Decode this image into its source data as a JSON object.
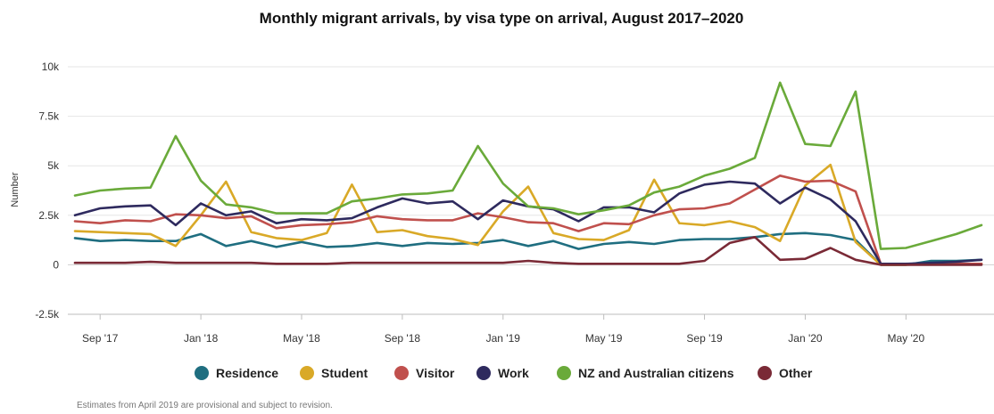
{
  "chart_data": {
    "type": "line",
    "title": "Monthly migrant arrivals, by visa type on arrival, August 2017–2020",
    "ylabel": "Number",
    "xlabel": "",
    "ylim": [
      -2500,
      10000
    ],
    "yticks": [
      -2500,
      0,
      2500,
      5000,
      7500,
      10000
    ],
    "ytick_labels": [
      "-2.5k",
      "0",
      "2.5k",
      "5k",
      "7.5k",
      "10k"
    ],
    "x": [
      "Aug 2017",
      "Sep 2017",
      "Oct 2017",
      "Nov 2017",
      "Dec 2017",
      "Jan 2018",
      "Feb 2018",
      "Mar 2018",
      "Apr 2018",
      "May 2018",
      "Jun 2018",
      "Jul 2018",
      "Aug 2018",
      "Sep 2018",
      "Oct 2018",
      "Nov 2018",
      "Dec 2018",
      "Jan 2019",
      "Feb 2019",
      "Mar 2019",
      "Apr 2019",
      "May 2019",
      "Jun 2019",
      "Jul 2019",
      "Aug 2019",
      "Sep 2019",
      "Oct 2019",
      "Nov 2019",
      "Dec 2019",
      "Jan 2020",
      "Feb 2020",
      "Mar 2020",
      "Apr 2020",
      "May 2020",
      "Jun 2020",
      "Jul 2020",
      "Aug 2020"
    ],
    "xtick_labels": [
      "Sep '17",
      "Jan '18",
      "May '18",
      "Sep '18",
      "Jan '19",
      "May '19",
      "Sep '19",
      "Jan '20",
      "May '20"
    ],
    "xtick_months": [
      1,
      5,
      9,
      13,
      17,
      21,
      25,
      29,
      33
    ],
    "grid": true,
    "legend_position": "bottom",
    "series": [
      {
        "name": "Residence",
        "color": "#1f6e80",
        "values": [
          1350,
          1200,
          1250,
          1200,
          1200,
          1550,
          950,
          1200,
          900,
          1150,
          900,
          950,
          1100,
          950,
          1100,
          1050,
          1100,
          1250,
          950,
          1200,
          800,
          1050,
          1150,
          1050,
          1250,
          1300,
          1300,
          1400,
          1550,
          1600,
          1500,
          1250,
          0,
          0,
          200,
          200,
          250
        ]
      },
      {
        "name": "Student",
        "color": "#d9a927",
        "values": [
          1700,
          1650,
          1600,
          1550,
          950,
          2500,
          4200,
          1650,
          1350,
          1250,
          1600,
          4050,
          1650,
          1750,
          1450,
          1300,
          1000,
          2700,
          3950,
          1600,
          1300,
          1250,
          1750,
          4300,
          2100,
          2000,
          2200,
          1900,
          1200,
          4000,
          5050,
          1150,
          0,
          0,
          50,
          50,
          50
        ]
      },
      {
        "name": "Visitor",
        "color": "#c0504d",
        "values": [
          2200,
          2100,
          2250,
          2200,
          2550,
          2500,
          2350,
          2450,
          1850,
          2000,
          2050,
          2150,
          2450,
          2300,
          2250,
          2250,
          2600,
          2400,
          2150,
          2100,
          1700,
          2100,
          2050,
          2500,
          2800,
          2850,
          3100,
          3800,
          4500,
          4200,
          4250,
          3700,
          50,
          50,
          50,
          50,
          50
        ]
      },
      {
        "name": "Work",
        "color": "#2e2a5e",
        "values": [
          2500,
          2850,
          2950,
          3000,
          2000,
          3100,
          2500,
          2700,
          2100,
          2300,
          2250,
          2350,
          2900,
          3350,
          3100,
          3200,
          2300,
          3250,
          2950,
          2800,
          2200,
          2900,
          2900,
          2650,
          3600,
          4050,
          4200,
          4100,
          3100,
          3900,
          3300,
          2200,
          50,
          50,
          100,
          150,
          250
        ]
      },
      {
        "name": "NZ and Australian citizens",
        "color": "#6aaa3a",
        "values": [
          3500,
          3750,
          3850,
          3900,
          6500,
          4250,
          3050,
          2900,
          2600,
          2600,
          2600,
          3200,
          3350,
          3550,
          3600,
          3750,
          6000,
          4100,
          2950,
          2850,
          2550,
          2750,
          3000,
          3650,
          3950,
          4500,
          4850,
          5400,
          9200,
          6100,
          6000,
          8750,
          800,
          850,
          1200,
          1550,
          2000
        ]
      },
      {
        "name": "Other",
        "color": "#7a2a36",
        "values": [
          100,
          100,
          100,
          150,
          100,
          100,
          100,
          100,
          50,
          50,
          50,
          100,
          100,
          100,
          100,
          100,
          100,
          100,
          200,
          100,
          50,
          50,
          50,
          50,
          50,
          200,
          1100,
          1400,
          250,
          300,
          850,
          250,
          0,
          0,
          0,
          0,
          0
        ]
      }
    ]
  },
  "footnote": "Estimates from April 2019 are provisional and subject to revision."
}
